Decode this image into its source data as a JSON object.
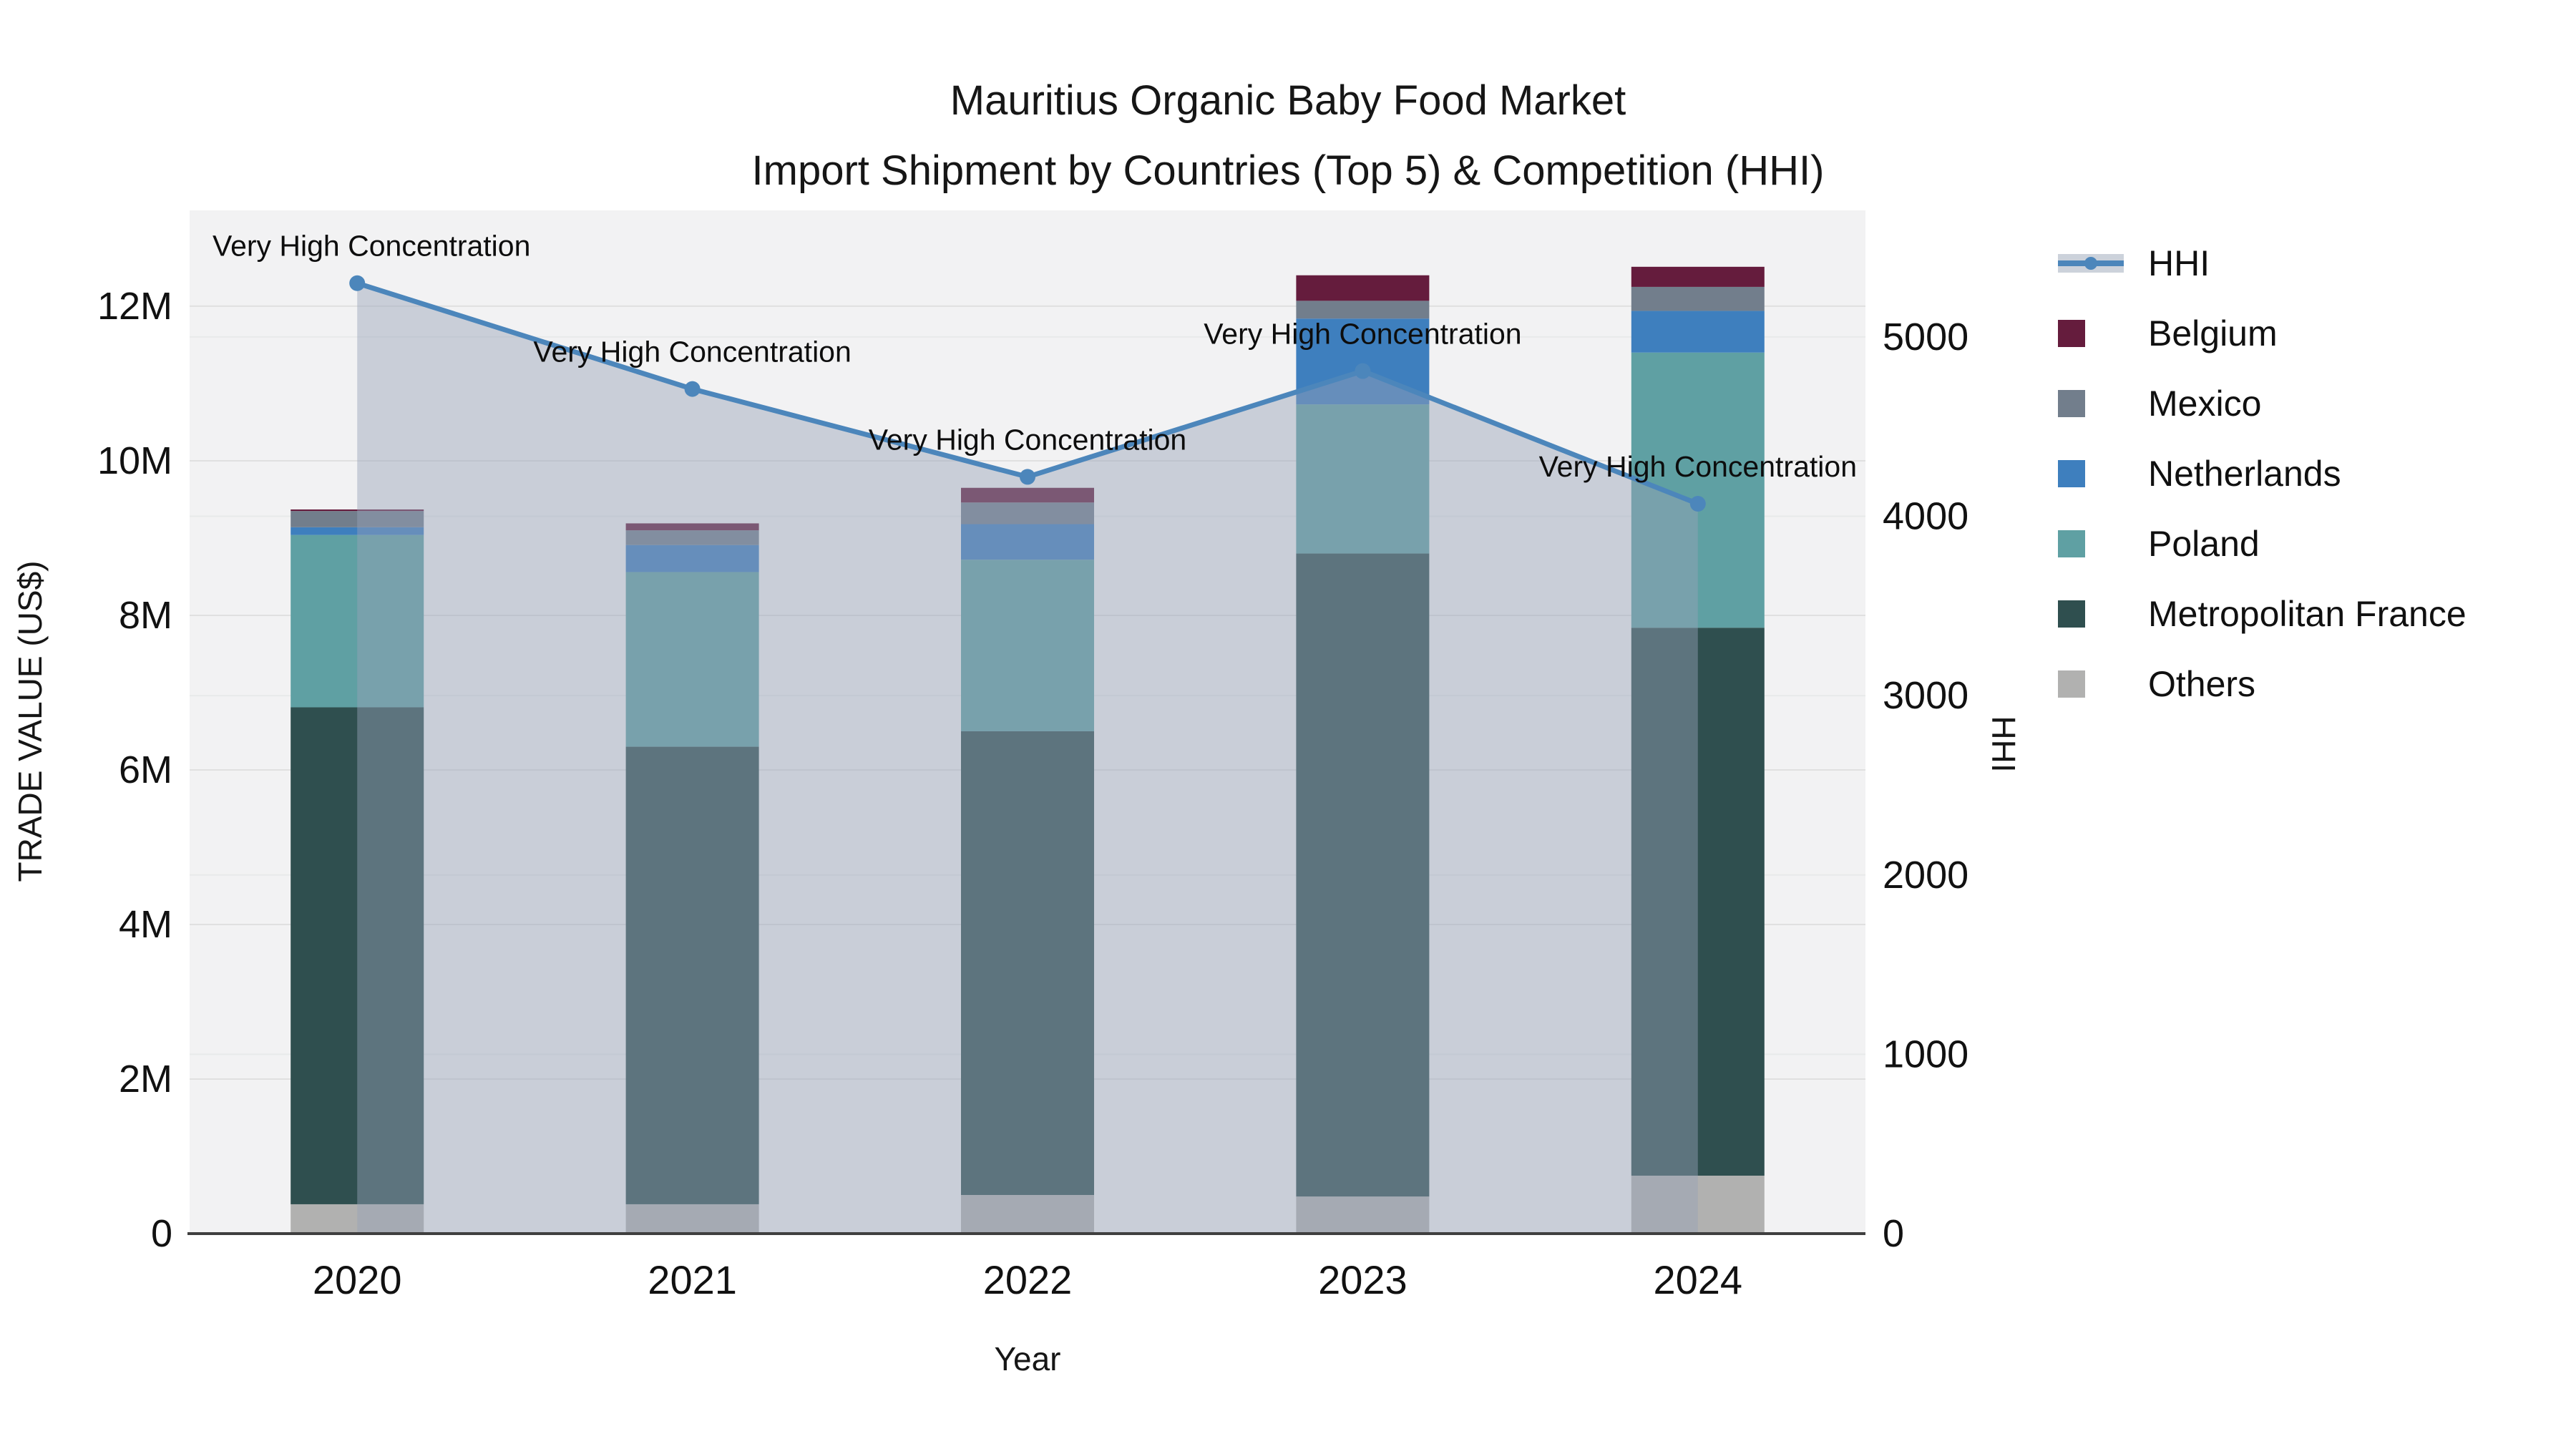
{
  "title": {
    "line1": "Mauritius Organic Baby Food Market",
    "line2": "Import Shipment by Countries (Top 5) & Competition (HHI)"
  },
  "chart_data": {
    "type": "bar",
    "stacked": true,
    "categories": [
      "2020",
      "2021",
      "2022",
      "2023",
      "2024"
    ],
    "value_unit": "millions US$",
    "series": [
      {
        "name": "Others",
        "color": "#b1b1b0",
        "values": [
          0.38,
          0.38,
          0.5,
          0.48,
          0.75
        ]
      },
      {
        "name": "Metropolitan France",
        "color": "#2f4f4f",
        "values": [
          6.43,
          5.92,
          6.0,
          8.32,
          7.09
        ]
      },
      {
        "name": "Poland",
        "color": "#5fa0a3",
        "values": [
          2.23,
          2.26,
          2.22,
          1.93,
          3.56
        ]
      },
      {
        "name": "Netherlands",
        "color": "#3e7fbe",
        "values": [
          0.1,
          0.35,
          0.46,
          1.11,
          0.54
        ]
      },
      {
        "name": "Mexico",
        "color": "#727e8c",
        "values": [
          0.21,
          0.19,
          0.28,
          0.23,
          0.31
        ]
      },
      {
        "name": "Belgium",
        "color": "#651c3d",
        "values": [
          0.02,
          0.09,
          0.19,
          0.33,
          0.26
        ]
      }
    ],
    "line_series": {
      "name": "HHI",
      "color": "#4c86bb",
      "area_fill_color": "rgba(151,162,184,0.45)",
      "axis": "right",
      "fill": "tozeroy",
      "values": [
        5300,
        4710,
        4220,
        4810,
        4070
      ]
    },
    "annotation_text": "Very High Concentration",
    "annotations_per_point": [
      "Very High Concentration",
      "Very High Concentration",
      "Very High Concentration",
      "Very High Concentration",
      "Very High Concentration"
    ],
    "axes": {
      "x": {
        "label": "Year"
      },
      "y_left": {
        "label": "TRADE VALUE (US$)",
        "tick_labels": [
          "0",
          "2M",
          "4M",
          "6M",
          "8M",
          "10M",
          "12M"
        ],
        "tick_values": [
          0,
          2,
          4,
          6,
          8,
          10,
          12
        ],
        "max": 13.24
      },
      "y_right": {
        "label": "HHI",
        "tick_labels": [
          "0",
          "1000",
          "2000",
          "3000",
          "4000",
          "5000"
        ],
        "tick_values": [
          0,
          1000,
          2000,
          3000,
          4000,
          5000
        ],
        "max": 5706
      }
    },
    "legend_position": "right",
    "grid": true
  },
  "legend": {
    "items": [
      {
        "label": "HHI",
        "kind": "line"
      },
      {
        "label": "Belgium",
        "kind": "square",
        "color": "#651c3d"
      },
      {
        "label": "Mexico",
        "kind": "square",
        "color": "#727e8c"
      },
      {
        "label": "Netherlands",
        "kind": "square",
        "color": "#3e7fbe"
      },
      {
        "label": "Poland",
        "kind": "square",
        "color": "#5fa0a3"
      },
      {
        "label": "Metropolitan France",
        "kind": "square",
        "color": "#2f4f4f"
      },
      {
        "label": "Others",
        "kind": "square",
        "color": "#b1b1b0"
      }
    ]
  },
  "colors": {
    "plot_background": "#f2f2f3",
    "grid_left": "#e0e0e0",
    "grid_right": "#e8eaea",
    "axis_line": "#3f3f3f",
    "hhi_line": "#4c86bb",
    "text": "#111111"
  }
}
